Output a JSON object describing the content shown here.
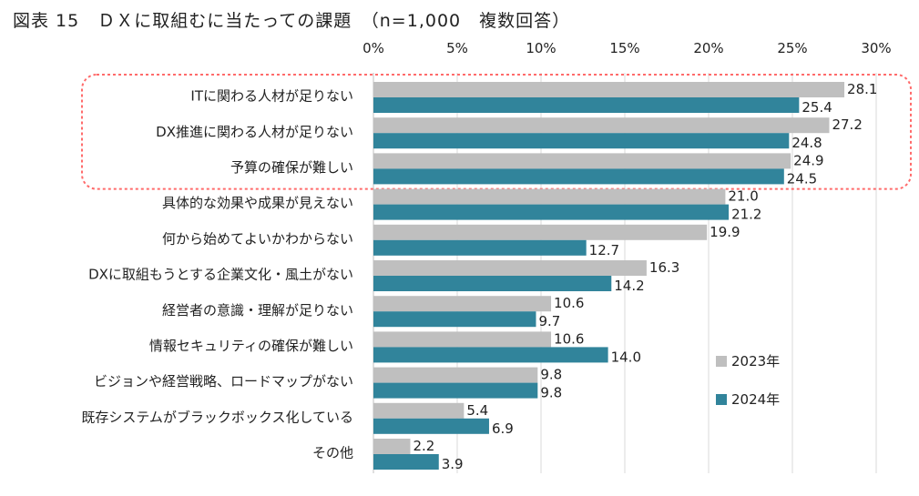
{
  "title": "図表 15　ＤＸに取組むに当たっての課題　（n=1,000　複数回答）",
  "chart_data": {
    "type": "bar",
    "orientation": "horizontal",
    "xlim": [
      0,
      30
    ],
    "ticks": [
      "0%",
      "5%",
      "10%",
      "15%",
      "20%",
      "25%",
      "30%"
    ],
    "tick_values": [
      0,
      5,
      10,
      15,
      20,
      25,
      30
    ],
    "grid": true,
    "legend_position": "bottom-right",
    "highlight": "dashed red rounded box around the top three categories",
    "categories": [
      "ITに関わる人材が足りない",
      "DX推進に関わる人材が足りない",
      "予算の確保が難しい",
      "具体的な効果や成果が見えない",
      "何から始めてよいかわからない",
      "DXに取組もうとする企業文化・風土がない",
      "経営者の意識・理解が足りない",
      "情報セキュリティの確保が難しい",
      "ビジョンや経営戦略、ロードマップがない",
      "既存システムがブラックボックス化している",
      "その他"
    ],
    "series": [
      {
        "name": "2023年",
        "color": "#bfbfbf",
        "values": [
          28.1,
          27.2,
          24.9,
          21.0,
          19.9,
          16.3,
          10.6,
          10.6,
          9.8,
          5.4,
          2.2
        ],
        "labels": [
          "28.1",
          "27.2",
          "24.9",
          "21.0",
          "19.9",
          "16.3",
          "10.6",
          "10.6",
          "9.8",
          "5.4",
          "2.2"
        ]
      },
      {
        "name": "2024年",
        "color": "#31849b",
        "values": [
          25.4,
          24.8,
          24.5,
          21.2,
          12.7,
          14.2,
          9.7,
          14.0,
          9.8,
          6.9,
          3.9
        ],
        "labels": [
          "25.4",
          "24.8",
          "24.5",
          "21.2",
          "12.7",
          "14.2",
          "9.7",
          "14.0",
          "9.8",
          "6.9",
          "3.9"
        ]
      }
    ]
  }
}
